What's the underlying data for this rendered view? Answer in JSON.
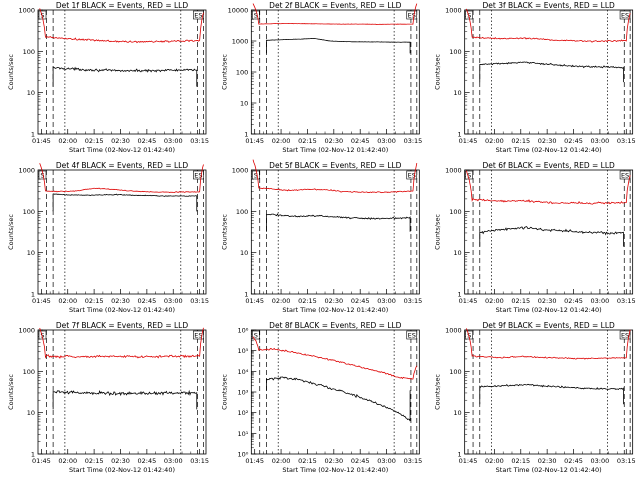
{
  "colors": {
    "events": "#000000",
    "lld": "#dd0000",
    "axis": "#000000"
  },
  "chart_data": [
    {
      "type": "line",
      "scale": "log",
      "title": "Det 1f BLACK = Events, RED = LLD",
      "xlabel": "Start Time (02-Nov-12 01:42:40)",
      "ylabel": "Counts/sec",
      "xticks": [
        "01:45",
        "02:00",
        "02:15",
        "02:30",
        "02:45",
        "03:00",
        "03:15"
      ],
      "yticks": [
        "1",
        "10",
        "100",
        "1000"
      ],
      "ylim": [
        1,
        1000
      ],
      "markers": {
        "start": "S",
        "end": "ES"
      },
      "series": [
        {
          "name": "Events",
          "baseline": 35,
          "shape": [
            40,
            38,
            36,
            35,
            34,
            34,
            34,
            35,
            35,
            35
          ],
          "noise": 0.06
        },
        {
          "name": "LLD",
          "baseline": 200,
          "shape": [
            230,
            210,
            195,
            185,
            175,
            170,
            170,
            175,
            180,
            185
          ],
          "noise": 0.05
        }
      ]
    },
    {
      "type": "line",
      "scale": "log",
      "title": "Det 2f BLACK = Events, RED = LLD",
      "xlabel": "Start Time (02-Nov-12 01:42:40)",
      "ylabel": "Counts/sec",
      "xticks": [
        "01:45",
        "02:00",
        "02:15",
        "02:30",
        "02:45",
        "03:00",
        "03:15"
      ],
      "yticks": [
        "1",
        "10",
        "100",
        "1000",
        "10000"
      ],
      "ylim": [
        1,
        10000
      ],
      "markers": {
        "start": "S",
        "end": "ES"
      },
      "series": [
        {
          "name": "Events",
          "baseline": 1000,
          "shape": [
            1050,
            1100,
            1150,
            1200,
            1000,
            950,
            940,
            930,
            920,
            920
          ],
          "noise": 0.01
        },
        {
          "name": "LLD",
          "baseline": 3500,
          "shape": [
            3500,
            3600,
            3650,
            3600,
            3550,
            3500,
            3500,
            3450,
            3500,
            3500
          ],
          "noise": 0.01
        }
      ]
    },
    {
      "type": "line",
      "scale": "log",
      "title": "Det 3f BLACK = Events, RED = LLD",
      "xlabel": "Start Time (02-Nov-12 01:42:40)",
      "ylabel": "Counts/sec",
      "xticks": [
        "01:45",
        "02:00",
        "02:15",
        "02:30",
        "02:45",
        "03:00",
        "03:15"
      ],
      "yticks": [
        "1",
        "10",
        "100",
        "1000"
      ],
      "ylim": [
        1,
        1000
      ],
      "markers": {
        "start": "S",
        "end": "ES"
      },
      "series": [
        {
          "name": "Events",
          "baseline": 45,
          "shape": [
            48,
            50,
            52,
            54,
            50,
            46,
            44,
            42,
            42,
            40
          ],
          "noise": 0.04
        },
        {
          "name": "LLD",
          "baseline": 200,
          "shape": [
            230,
            210,
            200,
            210,
            200,
            185,
            180,
            175,
            180,
            185
          ],
          "noise": 0.04
        }
      ]
    },
    {
      "type": "line",
      "scale": "log",
      "title": "Det 4f BLACK = Events, RED = LLD",
      "xlabel": "Start Time (02-Nov-12 01:42:40)",
      "ylabel": "Counts/sec",
      "xticks": [
        "01:45",
        "02:00",
        "02:15",
        "02:30",
        "02:45",
        "03:00",
        "03:15"
      ],
      "yticks": [
        "1",
        "10",
        "100",
        "1000"
      ],
      "ylim": [
        1,
        1000
      ],
      "markers": {
        "start": "S",
        "end": "ES"
      },
      "series": [
        {
          "name": "Events",
          "baseline": 250,
          "shape": [
            260,
            250,
            245,
            250,
            255,
            245,
            240,
            235,
            235,
            235
          ],
          "noise": 0.02
        },
        {
          "name": "LLD",
          "baseline": 300,
          "shape": [
            320,
            300,
            310,
            360,
            340,
            310,
            295,
            290,
            295,
            300
          ],
          "noise": 0.02
        }
      ]
    },
    {
      "type": "line",
      "scale": "log",
      "title": "Det 5f BLACK = Events, RED = LLD",
      "xlabel": "Start Time (02-Nov-12 01:42:40)",
      "ylabel": "Counts/sec",
      "xticks": [
        "01:45",
        "02:00",
        "02:15",
        "02:30",
        "02:45",
        "03:00",
        "03:15"
      ],
      "yticks": [
        "1",
        "10",
        "100",
        "1000"
      ],
      "ylim": [
        1,
        1000
      ],
      "markers": {
        "start": "S",
        "end": "ES"
      },
      "series": [
        {
          "name": "Events",
          "baseline": 80,
          "shape": [
            85,
            80,
            75,
            78,
            75,
            70,
            68,
            67,
            68,
            70
          ],
          "noise": 0.04
        },
        {
          "name": "LLD",
          "baseline": 350,
          "shape": [
            380,
            350,
            320,
            340,
            330,
            300,
            290,
            290,
            300,
            310
          ],
          "noise": 0.03
        }
      ]
    },
    {
      "type": "line",
      "scale": "log",
      "title": "Det 6f BLACK = Events, RED = LLD",
      "xlabel": "Start Time (02-Nov-12 01:42:40)",
      "ylabel": "Counts/sec",
      "xticks": [
        "01:45",
        "02:00",
        "02:15",
        "02:30",
        "02:45",
        "03:00",
        "03:15"
      ],
      "yticks": [
        "1",
        "10",
        "100",
        "1000"
      ],
      "ylim": [
        1,
        1000
      ],
      "markers": {
        "start": "S",
        "end": "ES"
      },
      "series": [
        {
          "name": "Events",
          "baseline": 35,
          "shape": [
            30,
            35,
            38,
            40,
            36,
            34,
            32,
            31,
            30,
            30
          ],
          "noise": 0.07
        },
        {
          "name": "LLD",
          "baseline": 180,
          "shape": [
            200,
            185,
            175,
            180,
            170,
            160,
            160,
            158,
            160,
            165
          ],
          "noise": 0.05
        }
      ]
    },
    {
      "type": "line",
      "scale": "log",
      "title": "Det 7f BLACK = Events, RED = LLD",
      "xlabel": "Start Time (02-Nov-12 01:42:40)",
      "ylabel": "Counts/sec",
      "xticks": [
        "01:45",
        "02:00",
        "02:15",
        "02:30",
        "02:45",
        "03:00",
        "03:15"
      ],
      "yticks": [
        "1",
        "10",
        "100",
        "1000"
      ],
      "ylim": [
        1,
        1000
      ],
      "markers": {
        "start": "S",
        "end": "ES"
      },
      "series": [
        {
          "name": "Events",
          "baseline": 30,
          "shape": [
            32,
            31,
            30,
            30,
            29,
            29,
            30,
            30,
            30,
            30
          ],
          "noise": 0.08
        },
        {
          "name": "LLD",
          "baseline": 230,
          "shape": [
            240,
            230,
            225,
            230,
            228,
            225,
            230,
            232,
            235,
            240
          ],
          "noise": 0.06
        }
      ]
    },
    {
      "type": "line",
      "scale": "log",
      "title": "Det 8f BLACK = Events, RED = LLD",
      "xlabel": "Start Time (02-Nov-12 01:42:40)",
      "ylabel": "Counts/sec",
      "xticks": [
        "01:45",
        "02:00",
        "02:15",
        "02:30",
        "02:45",
        "03:00",
        "03:15"
      ],
      "yticks": [
        "10⁰",
        "10¹",
        "10²",
        "10³",
        "10⁴",
        "10⁵",
        "10⁶"
      ],
      "ylim": [
        1,
        1000000
      ],
      "markers": {
        "start": "S",
        "end": "ES"
      },
      "series": [
        {
          "name": "Events",
          "baseline": 3000,
          "shape": [
            4000,
            5000,
            4000,
            2500,
            1500,
            900,
            500,
            250,
            120,
            40
          ],
          "noise": 0.12
        },
        {
          "name": "LLD",
          "baseline": 80000,
          "shape": [
            100000,
            120000,
            90000,
            60000,
            40000,
            25000,
            15000,
            9000,
            5000,
            4000
          ],
          "noise": 0.08
        }
      ]
    },
    {
      "type": "line",
      "scale": "log",
      "title": "Det 9f BLACK = Events, RED = LLD",
      "xlabel": "Start Time (02-Nov-12 01:42:40)",
      "ylabel": "Counts/sec",
      "xticks": [
        "01:45",
        "02:00",
        "02:15",
        "02:30",
        "02:45",
        "03:00",
        "03:15"
      ],
      "yticks": [
        "1",
        "10",
        "100",
        "1000"
      ],
      "ylim": [
        1,
        1000
      ],
      "markers": {
        "start": "S",
        "end": "ES"
      },
      "series": [
        {
          "name": "Events",
          "baseline": 40,
          "shape": [
            42,
            44,
            46,
            48,
            44,
            42,
            40,
            38,
            38,
            38
          ],
          "noise": 0.04
        },
        {
          "name": "LLD",
          "baseline": 220,
          "shape": [
            240,
            225,
            215,
            230,
            220,
            210,
            205,
            205,
            210,
            215
          ],
          "noise": 0.03
        }
      ]
    }
  ]
}
